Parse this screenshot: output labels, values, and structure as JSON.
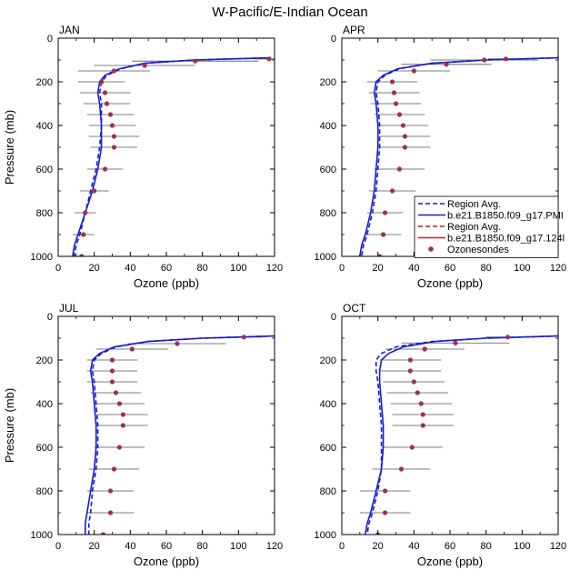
{
  "figure_title": "W-Pacific/E-Indian Ocean",
  "legend": {
    "entries": [
      {
        "label": "Region Avg.",
        "style": "dashed",
        "color": "#1a1ad6"
      },
      {
        "label": "b.e21.B1850.f09_g17.PMI",
        "style": "solid",
        "color": "#1a1ad6"
      },
      {
        "label": "Region Avg.",
        "style": "dashed",
        "color": "#cc1f1f"
      },
      {
        "label": "b.e21.B1850.f09_g17.124l",
        "style": "solid",
        "color": "#cc1f1f"
      },
      {
        "label": "Ozonesondes",
        "style": "dot",
        "color": "#a03050"
      }
    ]
  },
  "colors": {
    "blue": "#1a1ad6",
    "red": "#cc1f1f",
    "dot": "#a03050",
    "errorbar": "#555555"
  },
  "chart_data": [
    {
      "type": "line",
      "panel_label": "JAN",
      "xlabel": "Ozone (ppb)",
      "ylabel": "Pressure (mb)",
      "xlim": [
        0,
        120
      ],
      "ylim": [
        1000,
        0
      ],
      "xticks": [
        0,
        20,
        40,
        60,
        80,
        100,
        120
      ],
      "yticks": [
        0,
        200,
        400,
        600,
        800,
        1000
      ],
      "series": [
        {
          "style": "dashed",
          "x": [
            118,
            75,
            48,
            35,
            27,
            24,
            23,
            24,
            24,
            23,
            21,
            18,
            15,
            12,
            10,
            9
          ],
          "y": [
            90,
            100,
            115,
            140,
            170,
            200,
            250,
            300,
            400,
            500,
            600,
            700,
            800,
            900,
            950,
            1000
          ]
        },
        {
          "style": "solid",
          "x": [
            118,
            75,
            48,
            34,
            26,
            23,
            22,
            23,
            24,
            24,
            22,
            19,
            15,
            11,
            9,
            8
          ],
          "y": [
            90,
            100,
            115,
            140,
            170,
            200,
            250,
            300,
            400,
            500,
            600,
            700,
            800,
            900,
            950,
            1000
          ]
        }
      ],
      "points": [
        {
          "x": 117,
          "y": 95,
          "xerr": 8
        },
        {
          "x": 76,
          "y": 105,
          "xerr": 35
        },
        {
          "x": 48,
          "y": 125,
          "xerr": 28
        },
        {
          "x": 31,
          "y": 150,
          "xerr": 20
        },
        {
          "x": 24,
          "y": 200,
          "xerr": 13
        },
        {
          "x": 26,
          "y": 250,
          "xerr": 14
        },
        {
          "x": 27,
          "y": 300,
          "xerr": 13
        },
        {
          "x": 29,
          "y": 350,
          "xerr": 13
        },
        {
          "x": 30,
          "y": 400,
          "xerr": 13
        },
        {
          "x": 31,
          "y": 450,
          "xerr": 14
        },
        {
          "x": 31,
          "y": 500,
          "xerr": 13
        },
        {
          "x": 26,
          "y": 600,
          "xerr": 10
        },
        {
          "x": 20,
          "y": 700,
          "xerr": 8
        },
        {
          "x": 15,
          "y": 800,
          "xerr": 6
        },
        {
          "x": 14,
          "y": 900,
          "xerr": 6
        },
        {
          "x": 13,
          "y": 1000,
          "xerr": 5
        }
      ]
    },
    {
      "type": "line",
      "panel_label": "APR",
      "xlabel": "Ozone (ppb)",
      "ylabel": "",
      "xlim": [
        0,
        120
      ],
      "ylim": [
        1000,
        0
      ],
      "xticks": [
        0,
        20,
        40,
        60,
        80,
        100,
        120
      ],
      "yticks": [
        0,
        200,
        400,
        600,
        800,
        1000
      ],
      "series": [
        {
          "style": "dashed",
          "x": [
            120,
            80,
            50,
            32,
            24,
            20,
            19,
            20,
            21,
            21,
            20,
            19,
            17,
            14,
            12,
            11
          ],
          "y": [
            90,
            100,
            115,
            140,
            170,
            200,
            250,
            300,
            400,
            500,
            600,
            700,
            800,
            900,
            950,
            1000
          ]
        },
        {
          "style": "solid",
          "x": [
            120,
            80,
            50,
            31,
            23,
            19,
            18,
            19,
            20,
            20,
            19,
            18,
            16,
            13,
            11,
            10
          ],
          "y": [
            90,
            100,
            115,
            140,
            170,
            200,
            250,
            300,
            400,
            500,
            600,
            700,
            800,
            900,
            950,
            1000
          ]
        }
      ],
      "points": [
        {
          "x": 91,
          "y": 95,
          "xerr": 10
        },
        {
          "x": 79,
          "y": 100,
          "xerr": 30
        },
        {
          "x": 58,
          "y": 120,
          "xerr": 25
        },
        {
          "x": 40,
          "y": 150,
          "xerr": 20
        },
        {
          "x": 28,
          "y": 200,
          "xerr": 14
        },
        {
          "x": 29,
          "y": 250,
          "xerr": 14
        },
        {
          "x": 30,
          "y": 300,
          "xerr": 14
        },
        {
          "x": 32,
          "y": 350,
          "xerr": 14
        },
        {
          "x": 34,
          "y": 400,
          "xerr": 14
        },
        {
          "x": 35,
          "y": 450,
          "xerr": 14
        },
        {
          "x": 35,
          "y": 500,
          "xerr": 14
        },
        {
          "x": 32,
          "y": 600,
          "xerr": 14
        },
        {
          "x": 28,
          "y": 700,
          "xerr": 13
        },
        {
          "x": 24,
          "y": 800,
          "xerr": 10
        },
        {
          "x": 23,
          "y": 900,
          "xerr": 10
        },
        {
          "x": 21,
          "y": 1000,
          "xerr": 8
        }
      ]
    },
    {
      "type": "line",
      "panel_label": "JUL",
      "xlabel": "Ozone (ppb)",
      "ylabel": "Pressure (mb)",
      "xlim": [
        0,
        120
      ],
      "ylim": [
        1000,
        0
      ],
      "xticks": [
        0,
        20,
        40,
        60,
        80,
        100,
        120
      ],
      "yticks": [
        0,
        200,
        400,
        600,
        800,
        1000
      ],
      "series": [
        {
          "style": "dashed",
          "x": [
            120,
            80,
            50,
            32,
            24,
            20,
            19,
            20,
            21,
            22,
            22,
            21,
            19,
            18,
            17,
            17
          ],
          "y": [
            90,
            100,
            115,
            140,
            170,
            200,
            250,
            300,
            400,
            500,
            600,
            700,
            800,
            900,
            950,
            1000
          ]
        },
        {
          "style": "solid",
          "x": [
            120,
            80,
            50,
            31,
            23,
            19,
            18,
            19,
            20,
            21,
            21,
            20,
            18,
            16,
            15,
            15
          ],
          "y": [
            90,
            100,
            115,
            140,
            170,
            200,
            250,
            300,
            400,
            500,
            600,
            700,
            800,
            900,
            950,
            1000
          ]
        }
      ],
      "points": [
        {
          "x": 103,
          "y": 95,
          "xerr": 10
        },
        {
          "x": 66,
          "y": 125,
          "xerr": 27
        },
        {
          "x": 41,
          "y": 150,
          "xerr": 20
        },
        {
          "x": 30,
          "y": 200,
          "xerr": 14
        },
        {
          "x": 30,
          "y": 250,
          "xerr": 14
        },
        {
          "x": 30,
          "y": 300,
          "xerr": 14
        },
        {
          "x": 32,
          "y": 350,
          "xerr": 14
        },
        {
          "x": 34,
          "y": 400,
          "xerr": 14
        },
        {
          "x": 36,
          "y": 450,
          "xerr": 14
        },
        {
          "x": 36,
          "y": 500,
          "xerr": 14
        },
        {
          "x": 34,
          "y": 600,
          "xerr": 14
        },
        {
          "x": 31,
          "y": 700,
          "xerr": 14
        },
        {
          "x": 29,
          "y": 800,
          "xerr": 13
        },
        {
          "x": 29,
          "y": 900,
          "xerr": 13
        },
        {
          "x": 25,
          "y": 1000,
          "xerr": 12
        }
      ]
    },
    {
      "type": "line",
      "panel_label": "OCT",
      "xlabel": "Ozone (ppb)",
      "ylabel": "",
      "xlim": [
        0,
        120
      ],
      "ylim": [
        1000,
        0
      ],
      "xticks": [
        0,
        20,
        40,
        60,
        80,
        100,
        120
      ],
      "yticks": [
        0,
        200,
        400,
        600,
        800,
        1000
      ],
      "series": [
        {
          "style": "dashed",
          "x": [
            120,
            80,
            50,
            30,
            22,
            19,
            19,
            20,
            21,
            22,
            22,
            22,
            20,
            17,
            15,
            14
          ],
          "y": [
            90,
            100,
            115,
            140,
            170,
            200,
            250,
            300,
            400,
            500,
            600,
            700,
            800,
            900,
            950,
            1000
          ]
        },
        {
          "style": "solid",
          "x": [
            120,
            80,
            52,
            34,
            26,
            22,
            21,
            21,
            22,
            23,
            23,
            22,
            19,
            16,
            14,
            13
          ],
          "y": [
            90,
            100,
            115,
            140,
            170,
            200,
            250,
            300,
            400,
            500,
            600,
            700,
            800,
            900,
            950,
            1000
          ]
        }
      ],
      "points": [
        {
          "x": 92,
          "y": 95,
          "xerr": 12
        },
        {
          "x": 63,
          "y": 122,
          "xerr": 30
        },
        {
          "x": 46,
          "y": 150,
          "xerr": 22
        },
        {
          "x": 38,
          "y": 200,
          "xerr": 17
        },
        {
          "x": 38,
          "y": 250,
          "xerr": 17
        },
        {
          "x": 40,
          "y": 300,
          "xerr": 17
        },
        {
          "x": 42,
          "y": 350,
          "xerr": 17
        },
        {
          "x": 44,
          "y": 400,
          "xerr": 17
        },
        {
          "x": 45,
          "y": 450,
          "xerr": 17
        },
        {
          "x": 45,
          "y": 500,
          "xerr": 17
        },
        {
          "x": 39,
          "y": 600,
          "xerr": 17
        },
        {
          "x": 33,
          "y": 700,
          "xerr": 16
        },
        {
          "x": 24,
          "y": 800,
          "xerr": 14
        },
        {
          "x": 24,
          "y": 900,
          "xerr": 14
        },
        {
          "x": 20,
          "y": 1000,
          "xerr": 12
        }
      ]
    }
  ]
}
